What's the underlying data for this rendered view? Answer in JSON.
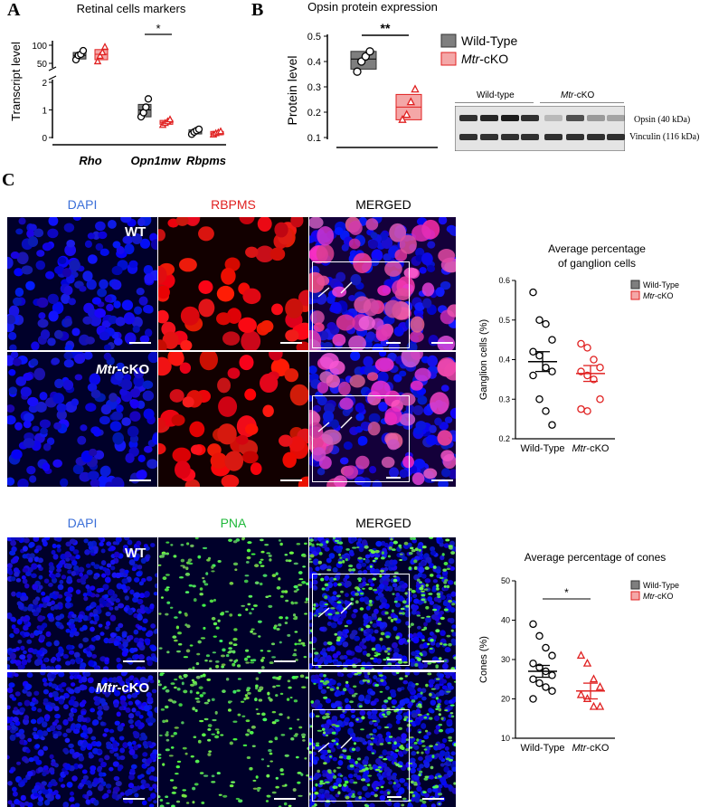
{
  "panel_labels": {
    "a": "A",
    "b": "B",
    "c": "C"
  },
  "colors": {
    "wt_fill": "#7f7f7f",
    "ko_fill": "#f4a7a7",
    "ko_stroke": "#e02020",
    "dapi_text": "#3b6fd8",
    "rbpms_text": "#e02020",
    "pna_text": "#1fb83a"
  },
  "western_blot": {
    "header_wt": "Wild-type",
    "header_ko_italic": "Mtr",
    "header_ko_rest": "-cKO",
    "band1": "Opsin (40 kDa)",
    "band2": "Vinculin (116 kDa)"
  },
  "micro_top": {
    "headers": [
      "DAPI",
      "RBPMS",
      "MERGED"
    ],
    "row_labels": {
      "wt": "WT",
      "ko_italic": "Mtr",
      "ko_rest": "-cKO"
    }
  },
  "micro_bottom": {
    "headers": [
      "DAPI",
      "PNA",
      "MERGED"
    ],
    "row_labels": {
      "wt": "WT",
      "ko_italic": "Mtr",
      "ko_rest": "-cKO"
    }
  },
  "chart_data": [
    {
      "type": "box",
      "title": "Retinal cells markers",
      "ylabel": "Transcript level",
      "categories": [
        "Rho",
        "Opn1mw",
        "Rbpms"
      ],
      "y_axis": "broken",
      "yticks_lower": [
        "0",
        "1",
        "2"
      ],
      "yticks_upper": [
        "50",
        "100"
      ],
      "significance": [
        {
          "category": "Opn1mw",
          "label": "*"
        }
      ],
      "series": [
        {
          "name": "Wild-Type",
          "values": [
            {
              "category": "Rho",
              "box": [
                62,
                80
              ],
              "median": 72,
              "points": [
                60,
                72,
                75,
                85
              ]
            },
            {
              "category": "Opn1mw",
              "box": [
                0.75,
                1.2
              ],
              "median": 1.0,
              "points": [
                0.75,
                0.9,
                1.1,
                1.4
              ]
            },
            {
              "category": "Rbpms",
              "box": [
                0.13,
                0.28
              ],
              "median": 0.2,
              "points": [
                0.12,
                0.2,
                0.25,
                0.3
              ]
            }
          ]
        },
        {
          "name": "Mtr-cKO",
          "values": [
            {
              "category": "Rho",
              "box": [
                60,
                88
              ],
              "median": 75,
              "points": [
                55,
                70,
                80,
                95
              ]
            },
            {
              "category": "Opn1mw",
              "box": [
                0.48,
                0.62
              ],
              "median": 0.55,
              "points": [
                0.45,
                0.52,
                0.58,
                0.65
              ]
            },
            {
              "category": "Rbpms",
              "box": [
                0.1,
                0.22
              ],
              "median": 0.16,
              "points": [
                0.1,
                0.15,
                0.18,
                0.22
              ]
            }
          ]
        }
      ]
    },
    {
      "type": "box",
      "title": "Opsin protein expression",
      "ylabel": "Protein level",
      "ylim": [
        0.1,
        0.5
      ],
      "yticks": [
        "0.1",
        "0.2",
        "0.3",
        "0.4",
        "0.5"
      ],
      "significance": [
        {
          "label": "**"
        }
      ],
      "legend": [
        {
          "label": "Wild-Type",
          "italic": "",
          "rest": "Wild-Type"
        },
        {
          "label": "Mtr-cKO",
          "italic": "Mtr",
          "rest": "-cKO"
        }
      ],
      "series": [
        {
          "name": "Wild-Type",
          "box": [
            0.37,
            0.44
          ],
          "median": 0.41,
          "points": [
            0.36,
            0.4,
            0.42,
            0.44
          ]
        },
        {
          "name": "Mtr-cKO",
          "box": [
            0.17,
            0.27
          ],
          "median": 0.22,
          "points": [
            0.17,
            0.19,
            0.24,
            0.29
          ]
        }
      ]
    },
    {
      "type": "scatter",
      "title_line1": "Average percentage",
      "title_line2": "of ganglion cells",
      "ylabel": "Ganglion cells (%)",
      "ylim": [
        0.2,
        0.6
      ],
      "yticks": [
        "0.2",
        "0.3",
        "0.4",
        "0.5",
        "0.6"
      ],
      "categories": [
        "Wild-Type",
        "Mtr-cKO"
      ],
      "legend": [
        {
          "label": "Wild-Type",
          "italic": "",
          "rest": "Wild-Type"
        },
        {
          "label": "Mtr-cKO",
          "italic": "Mtr",
          "rest": "-cKO"
        }
      ],
      "series": [
        {
          "name": "Wild-Type",
          "mean": 0.395,
          "sem": 0.025,
          "points": [
            0.57,
            0.5,
            0.49,
            0.45,
            0.42,
            0.41,
            0.38,
            0.37,
            0.36,
            0.3,
            0.27,
            0.235
          ]
        },
        {
          "name": "Mtr-cKO",
          "mean": 0.365,
          "sem": 0.02,
          "points": [
            0.44,
            0.43,
            0.4,
            0.38,
            0.37,
            0.36,
            0.35,
            0.3,
            0.275,
            0.27
          ]
        }
      ]
    },
    {
      "type": "scatter",
      "title": "Average percentage of cones",
      "ylabel": "Cones (%)",
      "ylim": [
        10,
        50
      ],
      "yticks": [
        "10",
        "20",
        "30",
        "40",
        "50"
      ],
      "categories": [
        "Wild-Type",
        "Mtr-cKO"
      ],
      "significance": [
        {
          "label": "*"
        }
      ],
      "legend": [
        {
          "label": "Wild-Type",
          "italic": "",
          "rest": "Wild-Type"
        },
        {
          "label": "Mtr-cKO",
          "italic": "Mtr",
          "rest": "-cKO"
        }
      ],
      "series": [
        {
          "name": "Wild-Type",
          "mean": 27,
          "sem": 1.5,
          "points": [
            39,
            36,
            33,
            31,
            29,
            28,
            27,
            26,
            25,
            24,
            23,
            22,
            20
          ]
        },
        {
          "name": "Mtr-cKO",
          "mean": 22,
          "sem": 2,
          "points": [
            31,
            29,
            25,
            23,
            21,
            20,
            18,
            18
          ]
        }
      ]
    }
  ]
}
